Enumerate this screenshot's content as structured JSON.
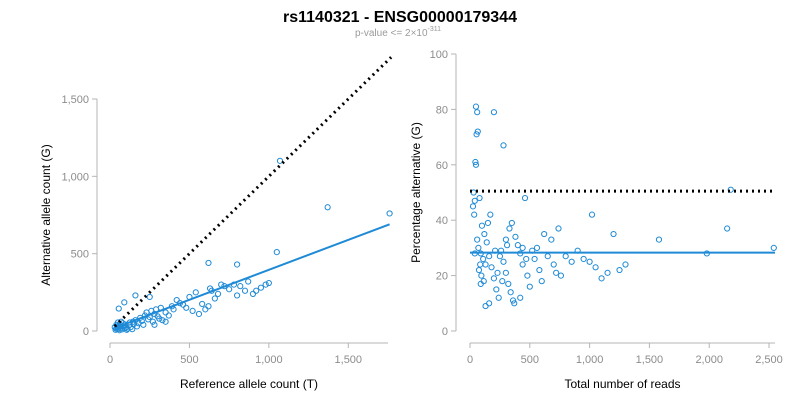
{
  "header": {
    "title": "rs1140321 - ENSG00000179344",
    "subtitle_prefix": "p-value <= 2×10",
    "subtitle_exp": "-311"
  },
  "colors": {
    "points": "#1f8ad6",
    "fit": "#1f8ad6",
    "reference": "#000000",
    "axis": "#b5b5b5",
    "ticks": "#8c8c8c"
  },
  "chart_data": [
    {
      "type": "scatter",
      "xlabel": "Reference allele count (T)",
      "ylabel": "Alternative allele count (G)",
      "xlim": [
        0,
        1750
      ],
      "ylim": [
        0,
        1500
      ],
      "x_ticks": [
        0,
        500,
        1000,
        1500
      ],
      "x_tick_labels": [
        "0",
        "500",
        "1,000",
        "1,500"
      ],
      "y_ticks": [
        0,
        500,
        1000,
        1500
      ],
      "y_tick_labels": [
        "0",
        "500",
        "1,000",
        "1,500"
      ],
      "grid": false,
      "reference_line": {
        "style": "dotted",
        "color": "#000000",
        "from": [
          30,
          30
        ],
        "to": [
          1770,
          1770
        ]
      },
      "fit_line": {
        "style": "solid",
        "color": "#1f8ad6",
        "from": [
          30,
          20
        ],
        "to": [
          1760,
          690
        ]
      },
      "points": [
        [
          35,
          8
        ],
        [
          40,
          15
        ],
        [
          45,
          25
        ],
        [
          50,
          12
        ],
        [
          55,
          30
        ],
        [
          60,
          45
        ],
        [
          65,
          20
        ],
        [
          70,
          35
        ],
        [
          75,
          10
        ],
        [
          80,
          50
        ],
        [
          40,
          40
        ],
        [
          50,
          55
        ],
        [
          60,
          5
        ],
        [
          70,
          60
        ],
        [
          85,
          28
        ],
        [
          90,
          18
        ],
        [
          95,
          42
        ],
        [
          100,
          22
        ],
        [
          105,
          8
        ],
        [
          110,
          15
        ],
        [
          120,
          38
        ],
        [
          125,
          55
        ],
        [
          130,
          25
        ],
        [
          140,
          12
        ],
        [
          145,
          60
        ],
        [
          150,
          45
        ],
        [
          160,
          70
        ],
        [
          170,
          30
        ],
        [
          180,
          50
        ],
        [
          190,
          85
        ],
        [
          200,
          65
        ],
        [
          210,
          40
        ],
        [
          220,
          100
        ],
        [
          230,
          120
        ],
        [
          240,
          75
        ],
        [
          250,
          90
        ],
        [
          260,
          130
        ],
        [
          270,
          60
        ],
        [
          280,
          110
        ],
        [
          290,
          140
        ],
        [
          300,
          95
        ],
        [
          310,
          80
        ],
        [
          320,
          150
        ],
        [
          330,
          70
        ],
        [
          350,
          120
        ],
        [
          370,
          100
        ],
        [
          390,
          160
        ],
        [
          400,
          140
        ],
        [
          420,
          200
        ],
        [
          440,
          180
        ],
        [
          460,
          170
        ],
        [
          480,
          150
        ],
        [
          500,
          220
        ],
        [
          520,
          130
        ],
        [
          540,
          250
        ],
        [
          560,
          110
        ],
        [
          580,
          175
        ],
        [
          600,
          140
        ],
        [
          620,
          160
        ],
        [
          640,
          260
        ],
        [
          660,
          210
        ],
        [
          680,
          240
        ],
        [
          700,
          300
        ],
        [
          720,
          290
        ],
        [
          750,
          270
        ],
        [
          780,
          300
        ],
        [
          800,
          230
        ],
        [
          820,
          290
        ],
        [
          850,
          260
        ],
        [
          870,
          320
        ],
        [
          900,
          240
        ],
        [
          920,
          260
        ],
        [
          950,
          280
        ],
        [
          980,
          300
        ],
        [
          1000,
          310
        ],
        [
          1050,
          510
        ],
        [
          1070,
          1100
        ],
        [
          1370,
          800
        ],
        [
          1760,
          760
        ],
        [
          620,
          440
        ],
        [
          800,
          430
        ],
        [
          630,
          275
        ],
        [
          250,
          220
        ],
        [
          55,
          145
        ],
        [
          90,
          185
        ],
        [
          160,
          230
        ],
        [
          280,
          40
        ],
        [
          350,
          60
        ],
        [
          30,
          25
        ]
      ]
    },
    {
      "type": "scatter",
      "xlabel": "Total number of reads",
      "ylabel": "Percentage alternative (G)",
      "xlim": [
        0,
        2550
      ],
      "ylim": [
        0,
        100
      ],
      "x_ticks": [
        0,
        500,
        1000,
        1500,
        2000,
        2500
      ],
      "x_tick_labels": [
        "0",
        "500",
        "1,000",
        "1,500",
        "2,000",
        "2,500"
      ],
      "y_ticks": [
        0,
        20,
        40,
        60,
        80,
        100
      ],
      "y_tick_labels": [
        "0",
        "20",
        "40",
        "60",
        "80",
        "100"
      ],
      "grid": false,
      "reference_line": {
        "style": "dotted",
        "color": "#000000",
        "from": [
          0,
          50.5
        ],
        "to": [
          2550,
          50.5
        ]
      },
      "fit_line": {
        "style": "solid",
        "color": "#1f8ad6",
        "from": [
          0,
          28.3
        ],
        "to": [
          2550,
          28.3
        ]
      },
      "points": [
        [
          50,
          81
        ],
        [
          60,
          79
        ],
        [
          55,
          71
        ],
        [
          65,
          72
        ],
        [
          45,
          61
        ],
        [
          50,
          60
        ],
        [
          200,
          79
        ],
        [
          280,
          67
        ],
        [
          30,
          50
        ],
        [
          40,
          47
        ],
        [
          25,
          45
        ],
        [
          35,
          42
        ],
        [
          80,
          48
        ],
        [
          100,
          38
        ],
        [
          120,
          35
        ],
        [
          60,
          33
        ],
        [
          70,
          30
        ],
        [
          90,
          28
        ],
        [
          110,
          26
        ],
        [
          130,
          24
        ],
        [
          75,
          22
        ],
        [
          95,
          20
        ],
        [
          115,
          18
        ],
        [
          140,
          32
        ],
        [
          160,
          27
        ],
        [
          180,
          23
        ],
        [
          200,
          19
        ],
        [
          220,
          15
        ],
        [
          240,
          12
        ],
        [
          260,
          29
        ],
        [
          280,
          25
        ],
        [
          300,
          21
        ],
        [
          320,
          17
        ],
        [
          340,
          14
        ],
        [
          360,
          11
        ],
        [
          380,
          34
        ],
        [
          400,
          31
        ],
        [
          420,
          28
        ],
        [
          440,
          24
        ],
        [
          460,
          48
        ],
        [
          480,
          20
        ],
        [
          500,
          16
        ],
        [
          520,
          29
        ],
        [
          540,
          26
        ],
        [
          560,
          30
        ],
        [
          580,
          22
        ],
        [
          600,
          18
        ],
        [
          620,
          35
        ],
        [
          650,
          27
        ],
        [
          680,
          33
        ],
        [
          700,
          24
        ],
        [
          720,
          21
        ],
        [
          740,
          37
        ],
        [
          760,
          20
        ],
        [
          800,
          27
        ],
        [
          850,
          25
        ],
        [
          900,
          29
        ],
        [
          950,
          26
        ],
        [
          1000,
          25
        ],
        [
          1050,
          23
        ],
        [
          1100,
          19
        ],
        [
          1150,
          21
        ],
        [
          1200,
          35
        ],
        [
          1250,
          22
        ],
        [
          1300,
          24
        ],
        [
          1580,
          33
        ],
        [
          1980,
          28
        ],
        [
          2150,
          37
        ],
        [
          2180,
          51
        ],
        [
          2540,
          30
        ],
        [
          150,
          39
        ],
        [
          170,
          42
        ],
        [
          330,
          37
        ],
        [
          350,
          39
        ],
        [
          90,
          17
        ],
        [
          130,
          9
        ],
        [
          160,
          10
        ],
        [
          370,
          10
        ],
        [
          420,
          12
        ],
        [
          1020,
          42
        ],
        [
          40,
          28
        ],
        [
          85,
          24
        ],
        [
          210,
          29
        ],
        [
          250,
          27
        ],
        [
          300,
          33
        ],
        [
          440,
          30
        ],
        [
          470,
          26
        ],
        [
          230,
          21
        ],
        [
          270,
          18
        ],
        [
          310,
          31
        ]
      ]
    }
  ]
}
